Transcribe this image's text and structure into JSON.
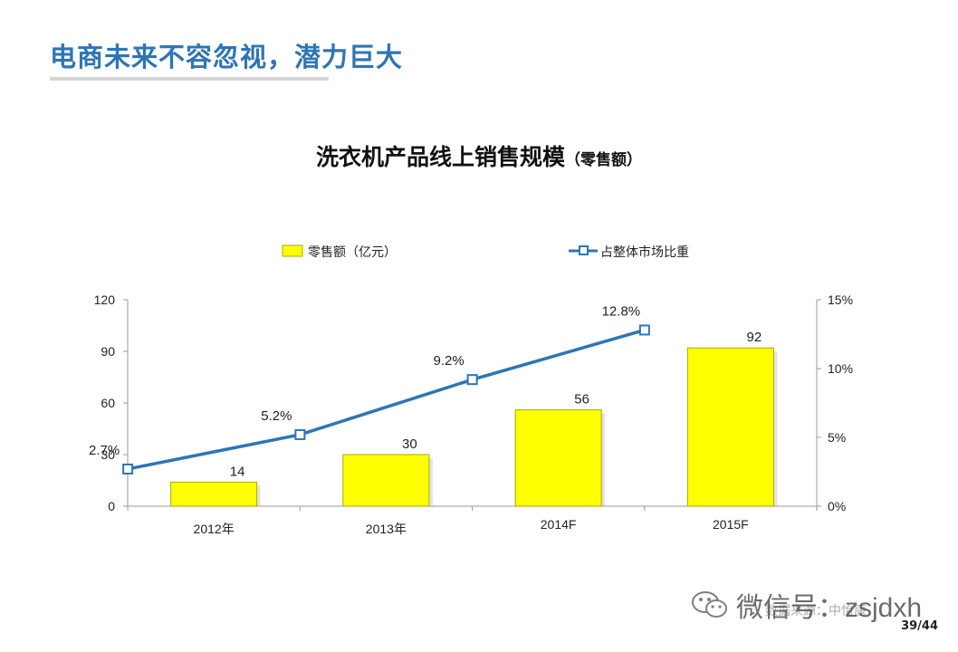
{
  "slide": {
    "title": "电商未来不容忽视，潜力巨大",
    "page_number": "39/44",
    "watermark": "微信号：zsjdxh",
    "source_note": "数据来源：中怡康"
  },
  "colors": {
    "title_blue": "#2e75b6",
    "bar_fill": "#ffff00",
    "bar_stroke": "#a8a800",
    "line": "#2e75b6"
  },
  "chart_data": {
    "type": "bar",
    "title": "洗衣机产品线上销售规模",
    "subtitle": "（零售额）",
    "categories": [
      "2012年",
      "2013年",
      "2014F",
      "2015F"
    ],
    "series": [
      {
        "name": "零售额（亿元）",
        "type": "bar",
        "axis": "left",
        "values": [
          14,
          30,
          56,
          92
        ]
      },
      {
        "name": "占整体市场比重",
        "type": "line",
        "axis": "right",
        "values": [
          2.7,
          5.2,
          9.2,
          12.8
        ],
        "labels": [
          "2.7%",
          "5.2%",
          "9.2%",
          "12.8%"
        ]
      }
    ],
    "y_left": {
      "min": 0,
      "max": 120,
      "ticks": [
        0,
        30,
        60,
        90,
        120
      ]
    },
    "y_right": {
      "min": 0,
      "max": 15,
      "ticks": [
        0,
        5,
        10,
        15
      ],
      "tick_labels": [
        "0%",
        "5%",
        "10%",
        "15%"
      ]
    },
    "legend_position": "top",
    "grid": false
  }
}
